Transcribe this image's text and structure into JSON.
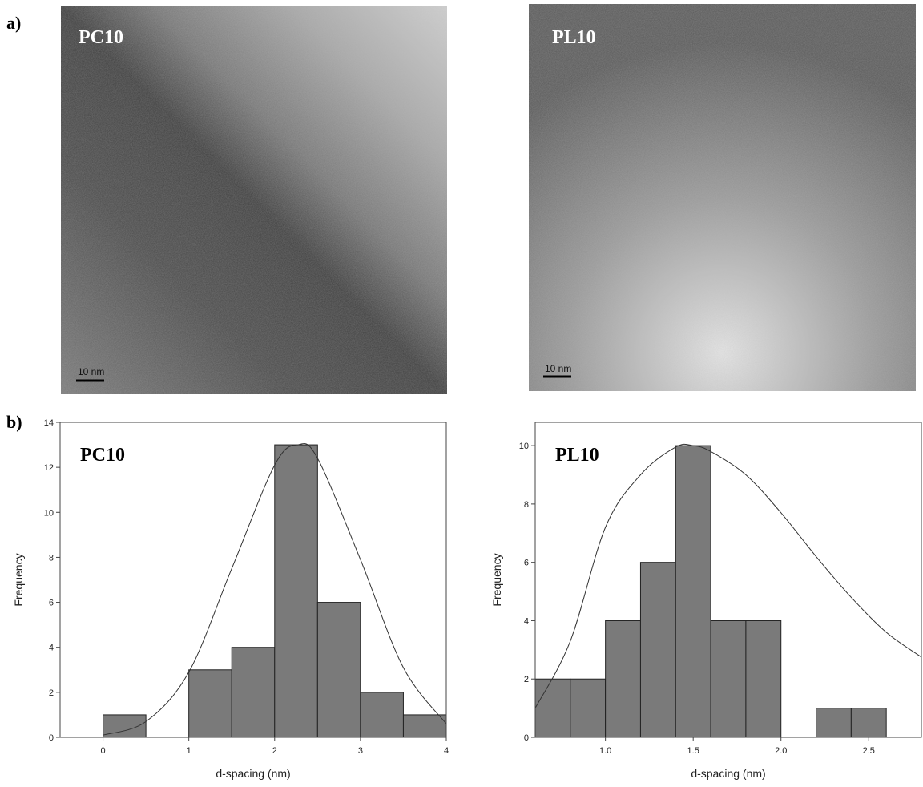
{
  "panel_labels": [
    "a)",
    "b)"
  ],
  "images": [
    {
      "label": "PC10",
      "scale_bar": "10 nm"
    },
    {
      "label": "PL10",
      "scale_bar": "10 nm"
    }
  ],
  "chart_data": [
    {
      "type": "histogram",
      "label": "PC10",
      "xlabel": "d-spacing (nm)",
      "ylabel": "Frequency",
      "color": "#7a7a7a",
      "bins": [
        0,
        0.5,
        1,
        1.5,
        2,
        2.5,
        3,
        3.5,
        4
      ],
      "counts": [
        1,
        0,
        3,
        4,
        13,
        6,
        2,
        1
      ],
      "xlim": [
        -0.5,
        4
      ],
      "ylim": [
        0,
        14
      ],
      "xticks": [
        0,
        1,
        2,
        3,
        4
      ],
      "yticks": [
        0,
        2,
        4,
        6,
        8,
        10,
        12,
        14
      ],
      "fit": {
        "x": [
          0,
          0.5,
          1,
          1.5,
          2,
          2.27,
          2.5,
          3,
          3.5,
          4
        ],
        "y": [
          0.1,
          0.7,
          2.9,
          7.5,
          12.1,
          13,
          12.4,
          7.9,
          3.1,
          0.6
        ]
      }
    },
    {
      "type": "histogram",
      "label": "PL10",
      "xlabel": "d-spacing (nm)",
      "ylabel": "Frequency",
      "color": "#7a7a7a",
      "bins": [
        0.6,
        0.8,
        1,
        1.2,
        1.4,
        1.6,
        1.8,
        2,
        2.2,
        2.4,
        2.6
      ],
      "counts": [
        2,
        2,
        4,
        6,
        10,
        4,
        4,
        0,
        1,
        1
      ],
      "xlim": [
        0.6,
        2.8
      ],
      "ylim": [
        0,
        10.8
      ],
      "xticks": [
        {
          "value": 1,
          "label": "1.0"
        },
        {
          "value": 1.5,
          "label": "1.5"
        },
        {
          "value": 2,
          "label": "2.0"
        },
        {
          "value": 2.5,
          "label": "2.5"
        }
      ],
      "yticks": [
        0,
        2,
        4,
        6,
        8,
        10
      ],
      "fit": {
        "x": [
          0.6,
          0.8,
          1,
          1.2,
          1.4,
          1.5,
          1.6,
          1.8,
          2,
          2.2,
          2.4,
          2.6,
          2.8
        ],
        "y": [
          1,
          3.3,
          7.2,
          9,
          9.95,
          10,
          9.8,
          9,
          7.7,
          6.2,
          4.8,
          3.6,
          2.75
        ]
      }
    }
  ]
}
